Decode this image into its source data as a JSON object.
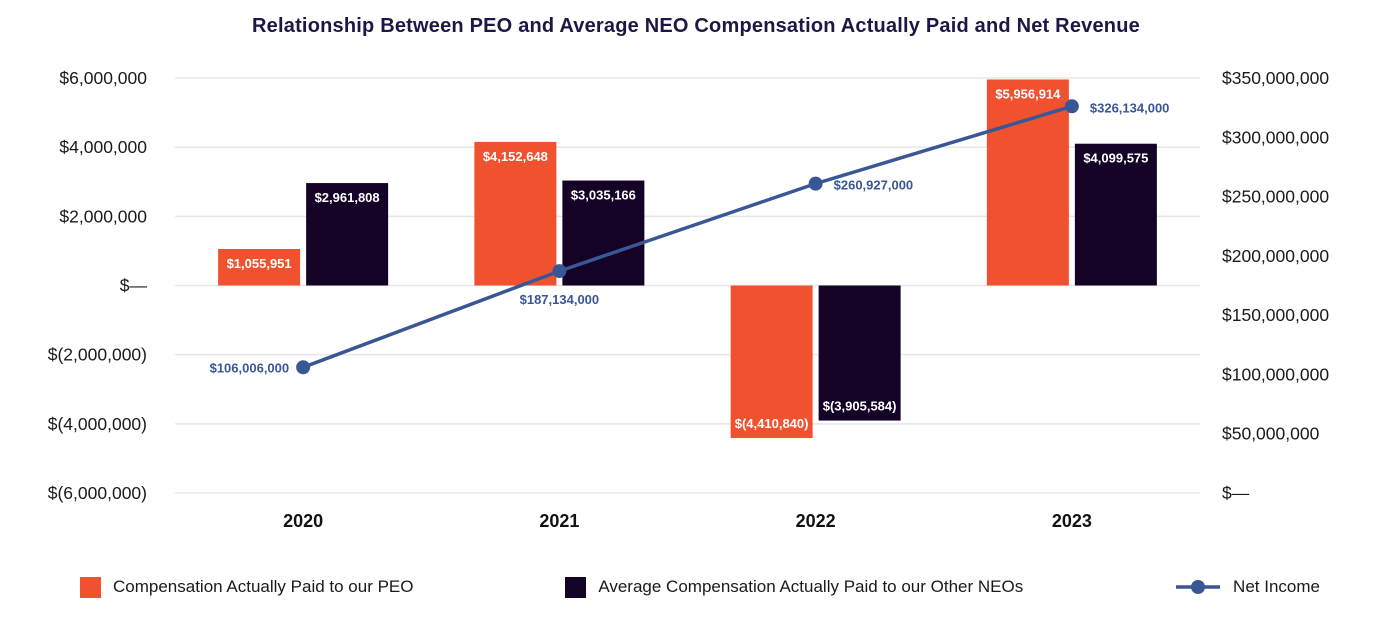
{
  "chart_data": {
    "type": "combo-bar-line",
    "title": "Relationship Between PEO and Average NEO Compensation Actually Paid and Net Revenue",
    "categories": [
      "2020",
      "2021",
      "2022",
      "2023"
    ],
    "series": [
      {
        "name": "Compensation Actually Paid to our PEO",
        "type": "bar",
        "axis": "left",
        "color": "#F0522F",
        "values": [
          1055951,
          4152648,
          -4410840,
          5956914
        ],
        "labels": [
          "$1,055,951",
          "$4,152,648",
          "$(4,410,840)",
          "$5,956,914"
        ]
      },
      {
        "name": "Average Compensation Actually Paid to our Other NEOs",
        "type": "bar",
        "axis": "left",
        "color": "#140327",
        "values": [
          2961808,
          3035166,
          -3905584,
          4099575
        ],
        "labels": [
          "$2,961,808",
          "$3,035,166",
          "$(3,905,584)",
          "$4,099,575"
        ]
      },
      {
        "name": "Net Income",
        "type": "line",
        "axis": "right",
        "color": "#3A5795",
        "values": [
          106006000,
          187134000,
          260927000,
          326134000
        ],
        "labels": [
          "$106,006,000",
          "$187,134,000",
          "$260,927,000",
          "$326,134,000"
        ],
        "label_placement": [
          "left",
          "below",
          "right",
          "right"
        ]
      }
    ],
    "left_axis": {
      "min": -6000000,
      "max": 6000000,
      "ticks": [
        "$6,000,000",
        "$4,000,000",
        "$2,000,000",
        "$—",
        "$(2,000,000)",
        "$(4,000,000)",
        "$(6,000,000)"
      ]
    },
    "right_axis": {
      "min": 0,
      "max": 350000000,
      "ticks": [
        "$350,000,000",
        "$300,000,000",
        "$250,000,000",
        "$200,000,000",
        "$150,000,000",
        "$100,000,000",
        "$50,000,000",
        "$—"
      ]
    },
    "grid": "horizontal",
    "legend_position": "bottom"
  },
  "colors": {
    "peo_bar": "#F0522F",
    "neo_bar": "#140327",
    "net_income": "#3A5795",
    "grid": "#E7E7E7",
    "axis_text": "#1A1A1A",
    "title_text": "#1E1645",
    "background": "#FFFFFF"
  },
  "legend": [
    {
      "label": "Compensation Actually Paid to our PEO",
      "swatch": "square",
      "color": "#F0522F"
    },
    {
      "label": "Average Compensation Actually Paid to our Other NEOs",
      "swatch": "square",
      "color": "#140327"
    },
    {
      "label": "Net Income",
      "swatch": "line-dot",
      "color": "#3A5795"
    }
  ]
}
